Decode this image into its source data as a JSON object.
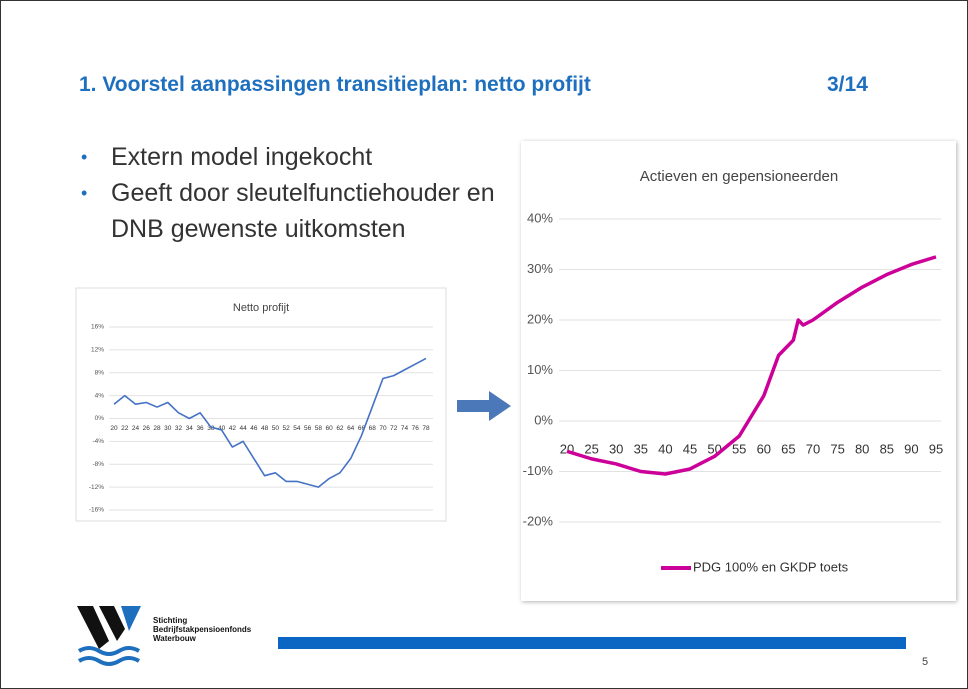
{
  "slide": {
    "title": "1. Voorstel aanpassingen transitieplan: netto profijt",
    "counter": "3/14",
    "bullets": [
      "Extern model ingekocht",
      "Geeft door sleutelfunctiehouder en DNB gewenste uitkomsten"
    ],
    "logo_text": [
      "Stichting",
      "Bedrijfstakpensioenfonds",
      "Waterbouw"
    ],
    "page_number": "5"
  },
  "chart_data": [
    {
      "type": "line",
      "title": "Netto profijt",
      "x": [
        20,
        22,
        24,
        26,
        28,
        30,
        32,
        34,
        36,
        38,
        40,
        42,
        44,
        46,
        48,
        50,
        52,
        54,
        56,
        58,
        60,
        62,
        64,
        66,
        68,
        70,
        72,
        74,
        76,
        78
      ],
      "xlim": [
        20,
        78
      ],
      "xticks": [
        20,
        22,
        24,
        26,
        28,
        30,
        32,
        34,
        36,
        38,
        40,
        42,
        44,
        46,
        48,
        50,
        52,
        54,
        56,
        58,
        60,
        62,
        64,
        66,
        68,
        70,
        72,
        74,
        76,
        78
      ],
      "series": [
        {
          "name": null,
          "color": "#4472c4",
          "values": [
            2.5,
            4,
            2.5,
            2.8,
            2,
            2.8,
            1,
            0,
            1,
            -1.5,
            -2,
            -5,
            -4,
            -7,
            -10,
            -9.5,
            -11,
            -11,
            -11.5,
            -12,
            -10.5,
            -9.5,
            -7,
            -3,
            2,
            7,
            7.5,
            8.5,
            9.5,
            10.5
          ]
        }
      ],
      "ylim": [
        -16,
        16
      ],
      "yticks": [
        {
          "value": 16,
          "label": "16%"
        },
        {
          "value": 12,
          "label": "12%"
        },
        {
          "value": 8,
          "label": "8%"
        },
        {
          "value": 4,
          "label": "4%"
        },
        {
          "value": 0,
          "label": "0%"
        },
        {
          "value": -4,
          "label": "-4%"
        },
        {
          "value": -8,
          "label": "-8%"
        },
        {
          "value": -12,
          "label": "-12%"
        },
        {
          "value": -16,
          "label": "-16%"
        }
      ],
      "grid": true
    },
    {
      "type": "line",
      "title": "Actieven en gepensioneerden",
      "x": [
        20,
        25,
        30,
        35,
        40,
        45,
        50,
        55,
        60,
        63,
        65,
        66,
        67,
        68,
        70,
        75,
        80,
        85,
        90,
        95
      ],
      "xlim": [
        20,
        95
      ],
      "xticks": [
        20,
        25,
        30,
        35,
        40,
        45,
        50,
        55,
        60,
        65,
        70,
        75,
        80,
        85,
        90,
        95
      ],
      "series": [
        {
          "name": "PDG 100% en GKDP toets",
          "color": "#cc0099",
          "values": [
            -6,
            -7.5,
            -8.5,
            -10,
            -10.5,
            -9.5,
            -7,
            -3,
            5,
            13,
            15,
            16,
            20,
            19,
            20,
            23.5,
            26.5,
            29,
            31,
            32.5
          ]
        }
      ],
      "ylim": [
        -20,
        40
      ],
      "yticks": [
        {
          "value": 40,
          "label": "40%"
        },
        {
          "value": 30,
          "label": "30%"
        },
        {
          "value": 20,
          "label": "20%"
        },
        {
          "value": 10,
          "label": "10%"
        },
        {
          "value": 0,
          "label": "0%"
        },
        {
          "value": -10,
          "label": "-10%"
        },
        {
          "value": -20,
          "label": "-20%"
        }
      ],
      "grid": true,
      "legend": "bottom"
    }
  ]
}
